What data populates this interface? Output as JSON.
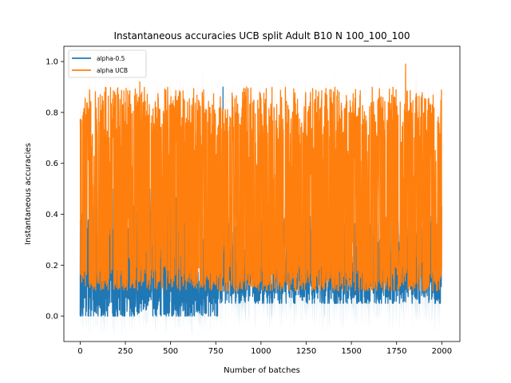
{
  "chart_data": {
    "type": "line",
    "title": "Instantaneous accuracies UCB split Adult B10 N 100_100_100",
    "xlabel": "Number of batches",
    "ylabel": "Instantaneous accuracies",
    "xlim": [
      -90,
      2100
    ],
    "ylim": [
      -0.1,
      1.06
    ],
    "xticks": [
      0,
      250,
      500,
      750,
      1000,
      1250,
      1500,
      1750,
      2000
    ],
    "yticks": [
      0.0,
      0.2,
      0.4,
      0.6,
      0.8,
      1.0
    ],
    "xtick_labels": [
      "0",
      "250",
      "500",
      "750",
      "1000",
      "1250",
      "1500",
      "1750",
      "2000"
    ],
    "ytick_labels": [
      "0.0",
      "0.2",
      "0.4",
      "0.6",
      "0.8",
      "1.0"
    ],
    "legend_position": "top-left",
    "grid": false,
    "n_points": 2000,
    "series": [
      {
        "name": "alpha-0.5",
        "color": "#1f77b4",
        "band_color": "#1f77b4",
        "segments": [
          {
            "x": [
              0,
              760
            ],
            "low": 0.0,
            "high": 0.5,
            "center": 0.18,
            "band": 0.06
          },
          {
            "x": [
              760,
              2000
            ],
            "low": 0.05,
            "high": 0.4,
            "center": 0.18,
            "band": 0.08
          }
        ],
        "peaks": [
          {
            "x": 790,
            "y": 0.9
          },
          {
            "x": 2000,
            "y": 0.43
          }
        ]
      },
      {
        "name": "alpha UCB",
        "color": "#ff7f0e",
        "band_color": "#ff7f0e",
        "segments": [
          {
            "x": [
              0,
              760
            ],
            "low": 0.1,
            "high": 0.9,
            "center": 0.5,
            "band": 0.06
          },
          {
            "x": [
              760,
              2000
            ],
            "low": 0.1,
            "high": 0.9,
            "center": 0.45,
            "band": 0.06
          }
        ],
        "peaks": [
          {
            "x": 1800,
            "y": 0.99
          },
          {
            "x": 330,
            "y": 0.92
          }
        ]
      }
    ]
  }
}
